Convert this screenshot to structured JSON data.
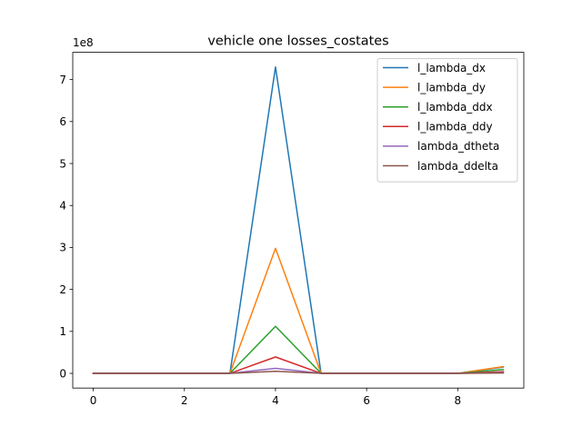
{
  "chart_data": {
    "type": "line",
    "title": "vehicle one losses_costates",
    "xlabel": "",
    "ylabel": "",
    "y_offset_label": "1e8",
    "y_scale": 100000000,
    "x": [
      0,
      1,
      2,
      3,
      4,
      5,
      6,
      7,
      8,
      9
    ],
    "xlim": [
      -0.45,
      9.45
    ],
    "ylim": [
      -0.35,
      7.65
    ],
    "x_ticks": [
      0,
      2,
      4,
      6,
      8
    ],
    "y_ticks": [
      0,
      1,
      2,
      3,
      4,
      5,
      6,
      7
    ],
    "legend_position": "top-right",
    "grid": false,
    "series": [
      {
        "name": "l_lambda_dx",
        "color": "#1f77b4",
        "values": [
          0,
          0,
          0,
          0,
          7.3,
          0,
          0,
          0,
          0,
          0.15
        ]
      },
      {
        "name": "l_lambda_dy",
        "color": "#ff7f0e",
        "values": [
          0,
          0,
          0,
          0,
          2.98,
          0,
          0,
          0,
          0,
          0.16
        ]
      },
      {
        "name": "l_lambda_ddx",
        "color": "#2ca02c",
        "values": [
          0,
          0,
          0,
          0,
          1.12,
          0,
          0,
          0,
          0,
          0.09
        ]
      },
      {
        "name": "l_lambda_ddy",
        "color": "#d62728",
        "values": [
          0,
          0,
          0,
          0,
          0.39,
          0,
          0,
          0,
          0,
          0.04
        ]
      },
      {
        "name": "lambda_dtheta",
        "color": "#9467bd",
        "values": [
          0,
          0,
          0,
          0,
          0.12,
          0,
          0,
          0,
          0,
          0.02
        ]
      },
      {
        "name": "lambda_ddelta",
        "color": "#8c564b",
        "values": [
          0,
          0,
          0,
          0,
          0.05,
          0,
          0,
          0,
          0,
          0.01
        ]
      }
    ]
  }
}
